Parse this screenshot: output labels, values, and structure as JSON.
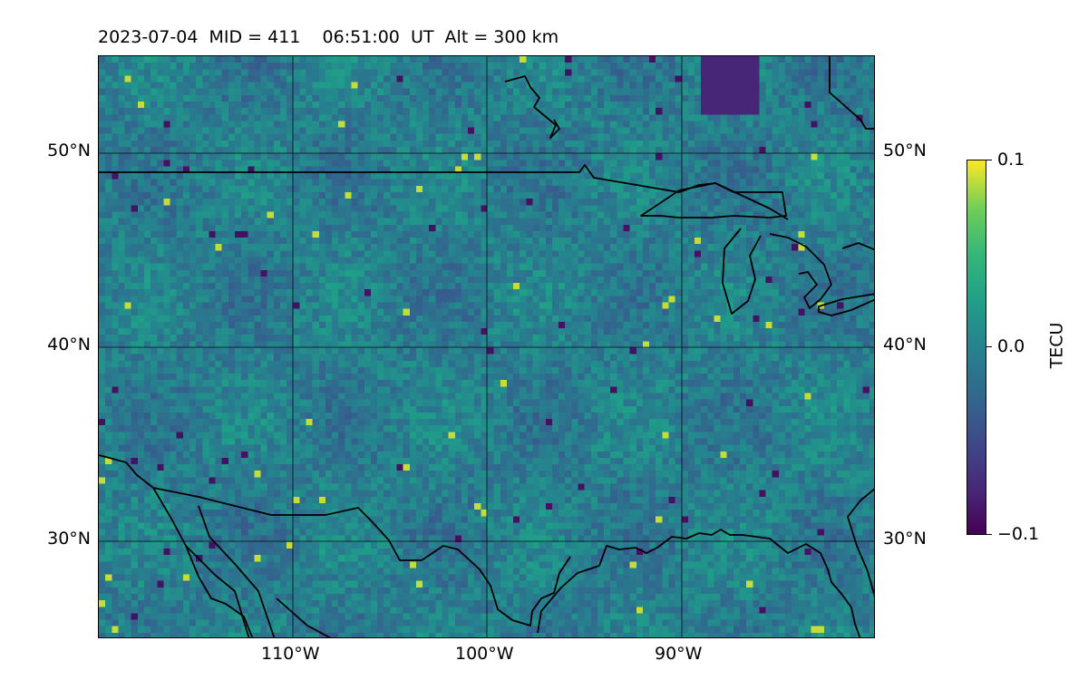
{
  "title": "2023-07-04  MID = 411    06:51:00  UT  Alt = 300 km",
  "map": {
    "lon_range": [
      -120,
      -80
    ],
    "lat_range": [
      25,
      55
    ],
    "lat_ticks": [
      "50°N",
      "40°N",
      "30°N"
    ],
    "lon_ticks": [
      "110°W",
      "100°W",
      "90°W"
    ],
    "gridlines": true,
    "colormap": "viridis"
  },
  "colorbar": {
    "label": "TECU",
    "ticks": [
      "0.1",
      "0.0",
      "−0.1"
    ],
    "range": [
      -0.1,
      0.1
    ]
  }
}
